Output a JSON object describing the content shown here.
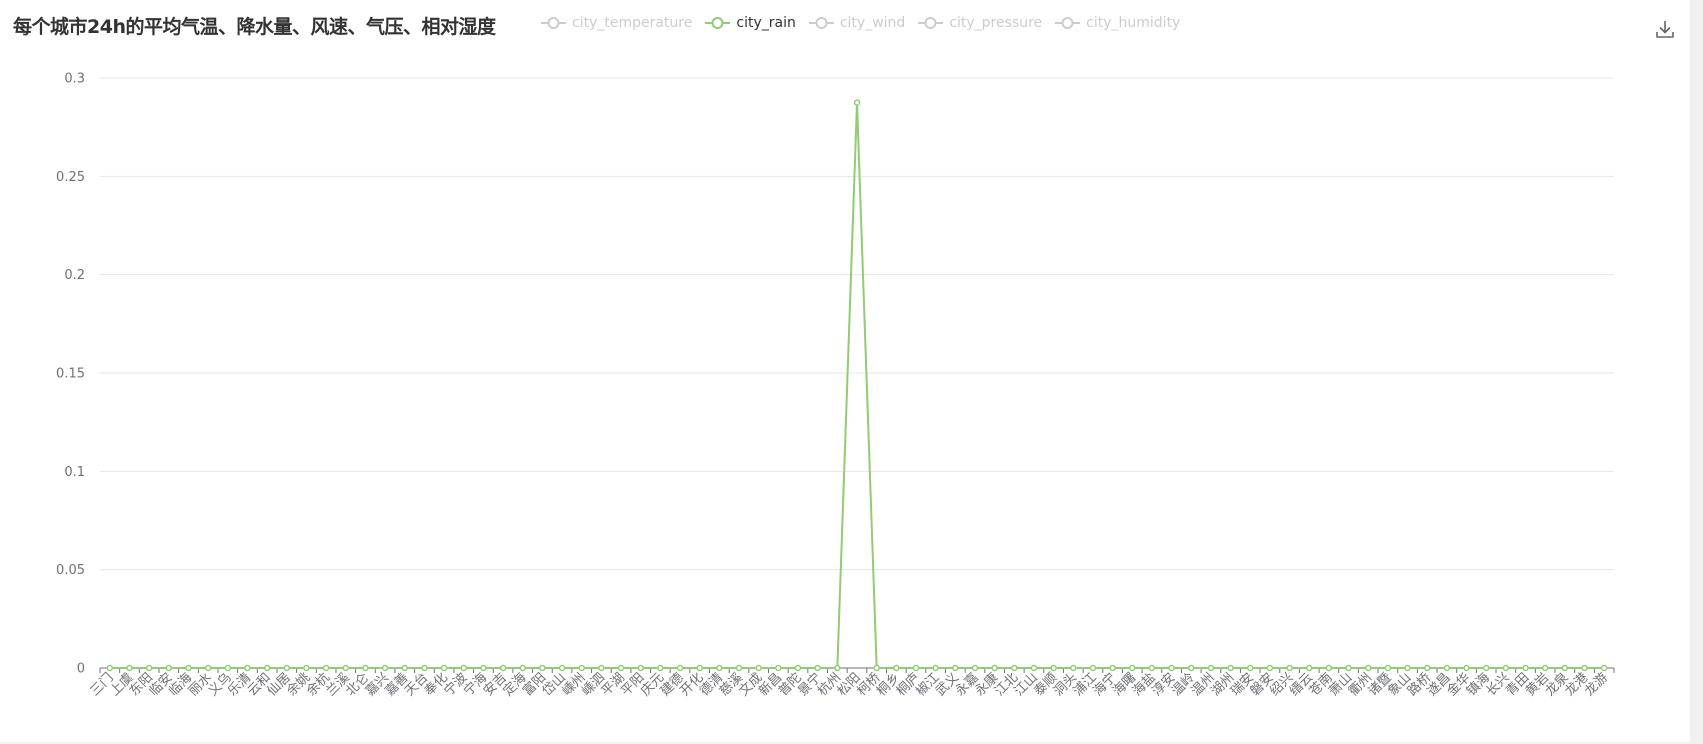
{
  "chart_data": {
    "type": "line",
    "title": "每个城市24h的平均气温、降水量、风速、气压、相对湿度",
    "legend": [
      {
        "name": "city_temperature",
        "active": false
      },
      {
        "name": "city_rain",
        "active": true
      },
      {
        "name": "city_wind",
        "active": false
      },
      {
        "name": "city_pressure",
        "active": false
      },
      {
        "name": "city_humidity",
        "active": false
      }
    ],
    "legend_placement": "top",
    "categories": [
      "三门",
      "上虞",
      "东阳",
      "临安",
      "临海",
      "丽水",
      "义乌",
      "乐清",
      "云和",
      "仙居",
      "余姚",
      "余杭",
      "兰溪",
      "北仑",
      "嘉兴",
      "嘉善",
      "天台",
      "奉化",
      "宁波",
      "宁海",
      "安吉",
      "定海",
      "富阳",
      "岱山",
      "嵊州",
      "嵊泗",
      "平湖",
      "平阳",
      "庆元",
      "建德",
      "开化",
      "德清",
      "慈溪",
      "文成",
      "新昌",
      "普陀",
      "景宁",
      "杭州",
      "松阳",
      "柯桥",
      "桐乡",
      "桐庐",
      "椒江",
      "武义",
      "永嘉",
      "永康",
      "江北",
      "江山",
      "泰顺",
      "洞头",
      "浦江",
      "海宁",
      "海曙",
      "海盐",
      "淳安",
      "温岭",
      "温州",
      "湖州",
      "瑞安",
      "磐安",
      "绍兴",
      "缙云",
      "苍南",
      "萧山",
      "衢州",
      "诸暨",
      "象山",
      "路桥",
      "遂昌",
      "金华",
      "镇海",
      "长兴",
      "青田",
      "黄岩",
      "龙泉",
      "龙港",
      "龙游"
    ],
    "series": [
      {
        "name": "city_rain",
        "color": "#91cc75",
        "values": [
          0,
          0,
          0,
          0,
          0,
          0,
          0,
          0,
          0,
          0,
          0,
          0,
          0,
          0,
          0,
          0,
          0,
          0,
          0,
          0,
          0,
          0,
          0,
          0,
          0,
          0,
          0,
          0,
          0,
          0,
          0,
          0,
          0,
          0,
          0,
          0,
          0,
          0,
          0.2875,
          0,
          0,
          0,
          0,
          0,
          0,
          0,
          0,
          0,
          0,
          0,
          0,
          0,
          0,
          0,
          0,
          0,
          0,
          0,
          0,
          0,
          0,
          0,
          0,
          0,
          0,
          0,
          0,
          0,
          0,
          0,
          0,
          0,
          0,
          0,
          0,
          0,
          0
        ]
      }
    ],
    "yticks": [
      "0",
      "0.05",
      "0.1",
      "0.15",
      "0.2",
      "0.25",
      "0.3"
    ],
    "ylim": [
      0,
      0.3
    ],
    "grid": true,
    "inactive_color": "#cccccc"
  },
  "toolbox": {
    "download_icon": "download-icon"
  }
}
